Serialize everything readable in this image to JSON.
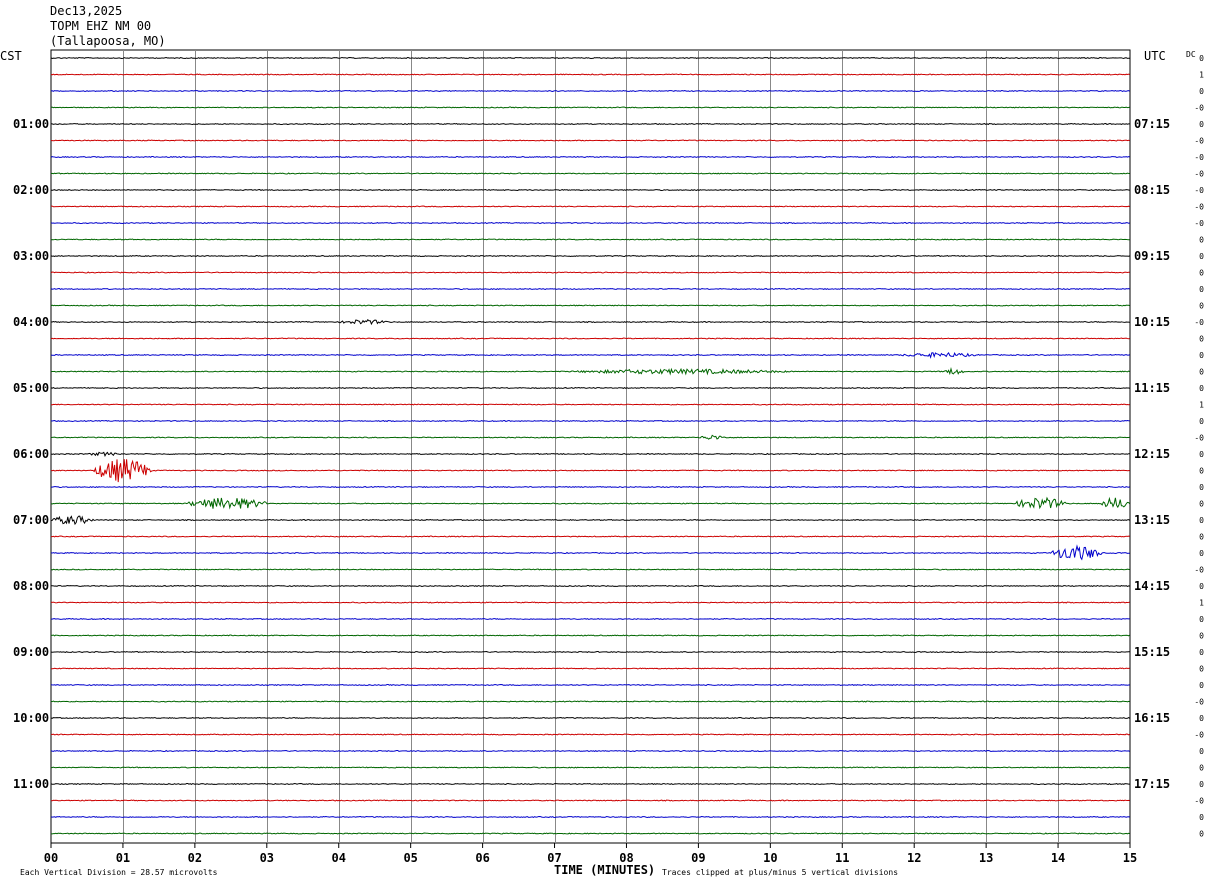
{
  "header": {
    "date": "Dec13,2025",
    "station": "TOPM EHZ NM 00",
    "location": "(Tallapoosa, MO)"
  },
  "left_timezone": "CST",
  "right_timezone": "UTC",
  "dc_label": "DC",
  "footer": {
    "scale_note": "Each Vertical Division =   28.57 microvolts",
    "xlabel": "TIME (MINUTES)",
    "clip_note": "Traces clipped at plus/minus 5 vertical divisions"
  },
  "chart_data": {
    "type": "line",
    "subtype": "helicorder",
    "x_range_minutes": [
      0,
      15
    ],
    "x_ticks": [
      "00",
      "01",
      "02",
      "03",
      "04",
      "05",
      "06",
      "07",
      "08",
      "09",
      "10",
      "11",
      "12",
      "13",
      "14",
      "15"
    ],
    "trace_minutes": 15,
    "trace_count": 48,
    "trace_color_cycle": [
      "#000000",
      "#cc0000",
      "#0000cc",
      "#006600"
    ],
    "left_hour_labels": [
      "01:00",
      "02:00",
      "03:00",
      "04:00",
      "05:00",
      "06:00",
      "07:00",
      "08:00",
      "09:00",
      "10:00",
      "11:00"
    ],
    "right_hour_labels": [
      "07:15",
      "08:15",
      "09:15",
      "10:15",
      "11:15",
      "12:15",
      "13:15",
      "14:15",
      "15:15",
      "16:15",
      "17:15"
    ],
    "hour_label_first_trace": 4,
    "dc_offsets": [
      "0",
      "1",
      "0",
      "-0",
      "0",
      "-0",
      "-0",
      "-0",
      "-0",
      "-0",
      "-0",
      "0",
      "0",
      "0",
      "0",
      "0",
      "-0",
      "0",
      "0",
      "0",
      "0",
      "1",
      "0",
      "-0",
      "0",
      "0",
      "0",
      "0",
      "0",
      "0",
      "0",
      "-0",
      "0",
      "1",
      "0",
      "0",
      "0",
      "0",
      "0",
      "-0",
      "0",
      "-0",
      "0",
      "0",
      "0",
      "-0",
      "0",
      "0"
    ],
    "events": [
      {
        "trace": 25,
        "start_min": 0.6,
        "end_min": 1.4,
        "peak_divisions": 4.0
      },
      {
        "trace": 27,
        "start_min": 1.9,
        "end_min": 3.0,
        "peak_divisions": 2.0
      },
      {
        "trace": 28,
        "start_min": 0.0,
        "end_min": 0.6,
        "peak_divisions": 1.5
      },
      {
        "trace": 27,
        "start_min": 13.4,
        "end_min": 14.1,
        "peak_divisions": 2.0
      },
      {
        "trace": 27,
        "start_min": 14.6,
        "end_min": 15.0,
        "peak_divisions": 2.0
      },
      {
        "trace": 30,
        "start_min": 13.9,
        "end_min": 14.6,
        "peak_divisions": 2.5
      },
      {
        "trace": 18,
        "start_min": 11.8,
        "end_min": 12.9,
        "peak_divisions": 0.8
      },
      {
        "trace": 19,
        "start_min": 7.2,
        "end_min": 10.3,
        "peak_divisions": 0.8
      },
      {
        "trace": 19,
        "start_min": 12.4,
        "end_min": 12.7,
        "peak_divisions": 1.0
      },
      {
        "trace": 16,
        "start_min": 4.0,
        "end_min": 4.7,
        "peak_divisions": 0.8
      },
      {
        "trace": 23,
        "start_min": 9.0,
        "end_min": 9.4,
        "peak_divisions": 0.8
      },
      {
        "trace": 24,
        "start_min": 0.5,
        "end_min": 1.0,
        "peak_divisions": 0.6
      }
    ]
  }
}
